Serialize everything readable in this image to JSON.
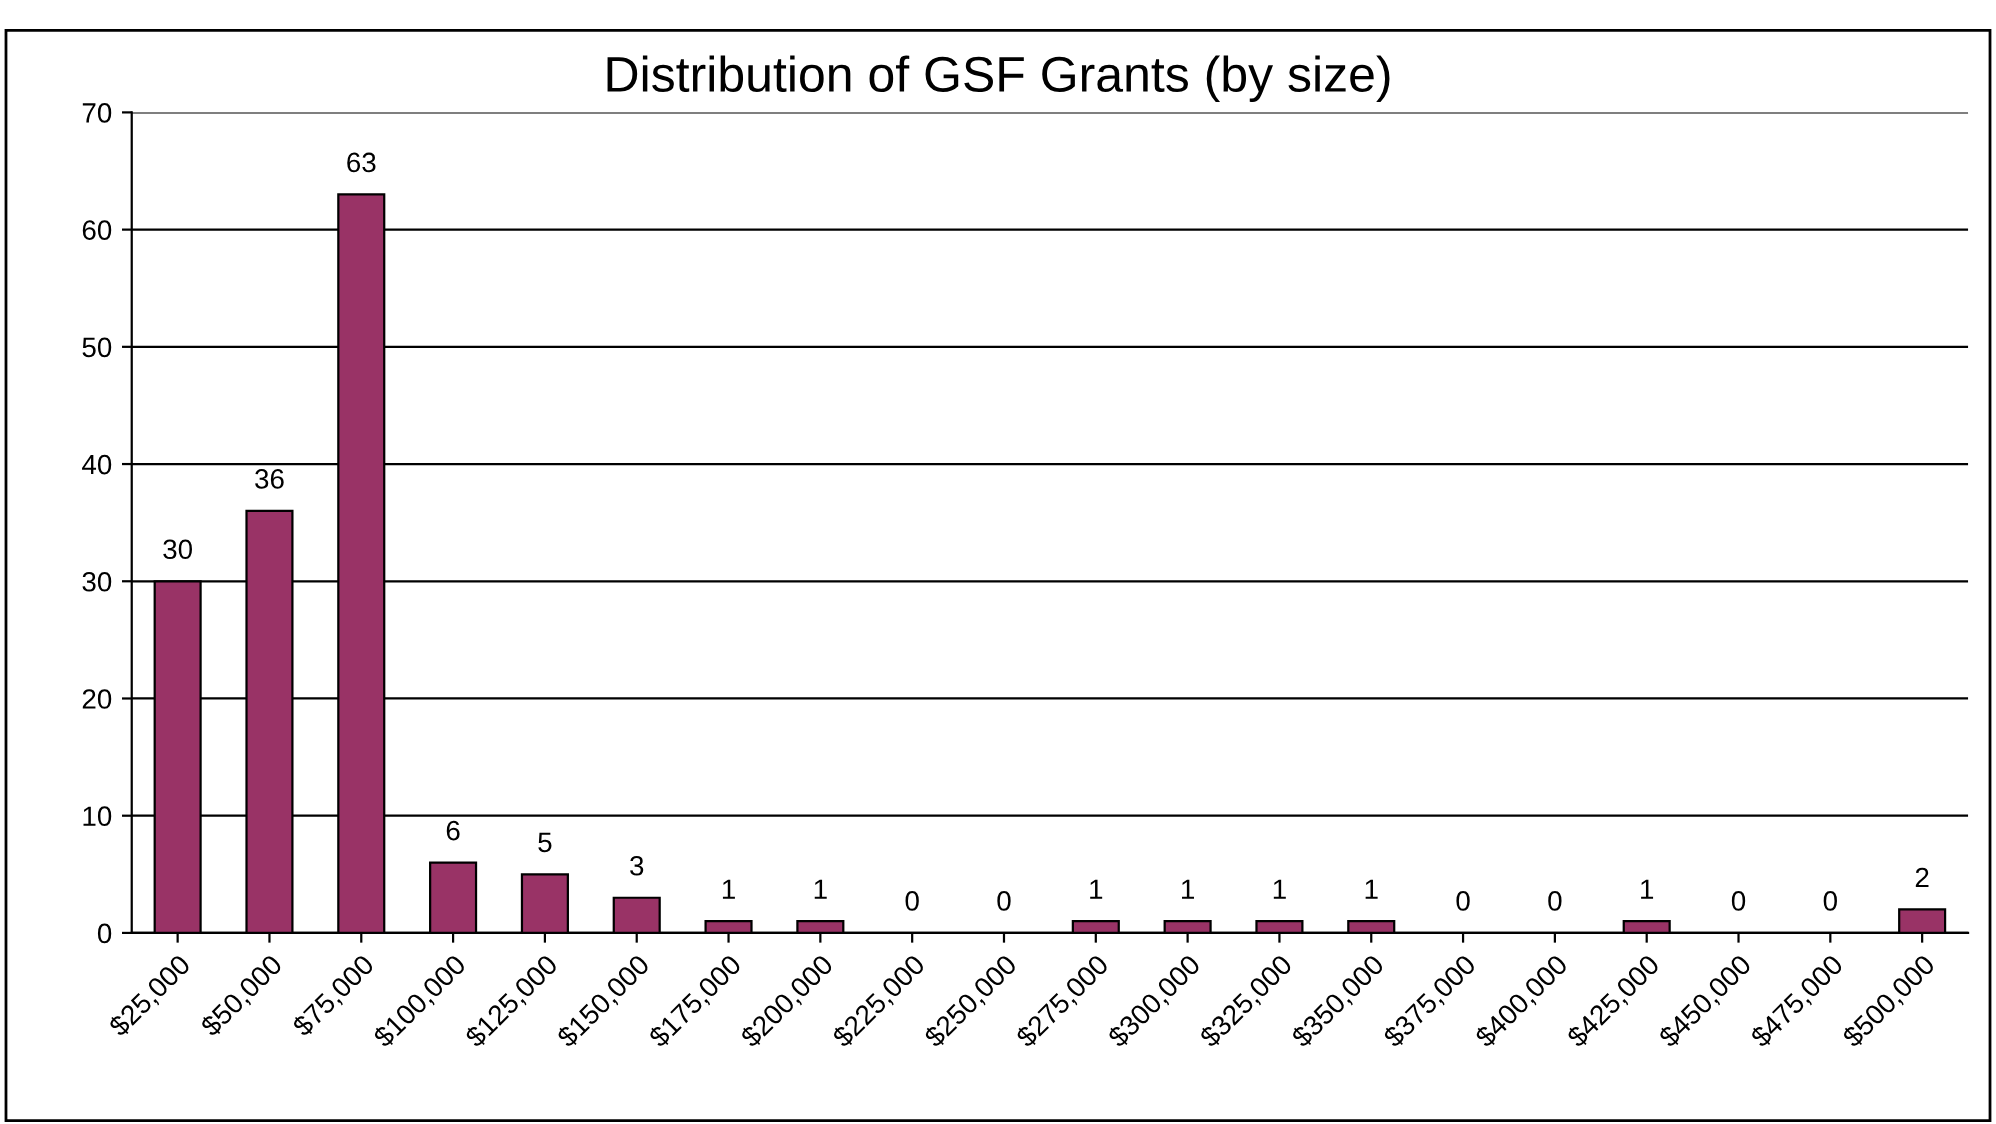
{
  "chart_data": {
    "type": "bar",
    "title": "Distribution of GSF Grants (by size)",
    "categories": [
      "$25,000",
      "$50,000",
      "$75,000",
      "$100,000",
      "$125,000",
      "$150,000",
      "$175,000",
      "$200,000",
      "$225,000",
      "$250,000",
      "$275,000",
      "$300,000",
      "$325,000",
      "$350,000",
      "$375,000",
      "$400,000",
      "$425,000",
      "$450,000",
      "$475,000",
      "$500,000"
    ],
    "values": [
      30,
      36,
      63,
      6,
      5,
      3,
      1,
      1,
      0,
      0,
      1,
      1,
      1,
      1,
      0,
      0,
      1,
      0,
      0,
      2
    ],
    "color": "#993366",
    "ylim": [
      0,
      70
    ],
    "yticks": [
      0,
      10,
      20,
      30,
      40,
      50,
      60,
      70
    ],
    "grid": "y",
    "data_labels": true
  }
}
